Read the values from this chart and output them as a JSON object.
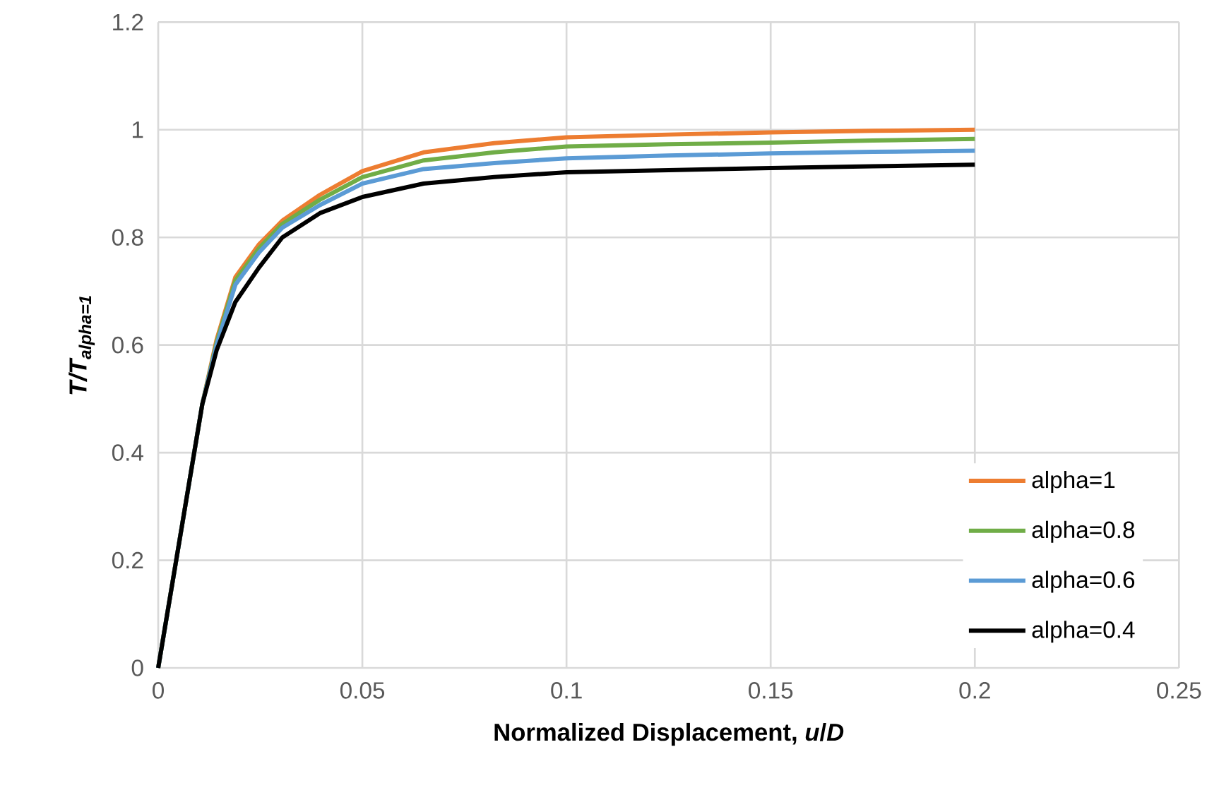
{
  "chart_data": {
    "type": "line",
    "xlabel": "Normalized Displacement, *u*/*D*",
    "ylabel": "T/T$_{alpha=1}$",
    "x": [
      0,
      0.0108,
      0.0143,
      0.0189,
      0.0247,
      0.0304,
      0.0396,
      0.05,
      0.065,
      0.0823,
      0.1,
      0.125,
      0.15,
      0.175,
      0.2
    ],
    "series": [
      {
        "name": "alpha=1",
        "color": "#ed7d31",
        "values": [
          0,
          0.49,
          0.61,
          0.726,
          0.787,
          0.831,
          0.879,
          0.923,
          0.958,
          0.975,
          0.986,
          0.991,
          0.995,
          0.998,
          1.0
        ]
      },
      {
        "name": "alpha=0.8",
        "color": "#70ad47",
        "values": [
          0,
          0.49,
          0.605,
          0.72,
          0.78,
          0.825,
          0.87,
          0.912,
          0.943,
          0.958,
          0.969,
          0.973,
          0.976,
          0.98,
          0.983
        ]
      },
      {
        "name": "alpha=0.6",
        "color": "#5b9bd5",
        "values": [
          0,
          0.49,
          0.6,
          0.712,
          0.772,
          0.818,
          0.86,
          0.9,
          0.927,
          0.938,
          0.947,
          0.952,
          0.956,
          0.959,
          0.961
        ]
      },
      {
        "name": "alpha=0.4",
        "color": "#000000",
        "values": [
          0,
          0.49,
          0.59,
          0.68,
          0.744,
          0.8,
          0.845,
          0.875,
          0.9,
          0.912,
          0.921,
          0.925,
          0.929,
          0.932,
          0.935
        ]
      }
    ],
    "xlim": [
      0,
      0.25
    ],
    "xticks": [
      0,
      0.05,
      0.1,
      0.15,
      0.2,
      0.25
    ],
    "ylim": [
      0,
      1.2
    ],
    "yticks": [
      0,
      0.2,
      0.4,
      0.6,
      0.8,
      1,
      1.2
    ],
    "grid": true,
    "legend": "bottom right",
    "marker": "none",
    "line_style": "solid"
  }
}
